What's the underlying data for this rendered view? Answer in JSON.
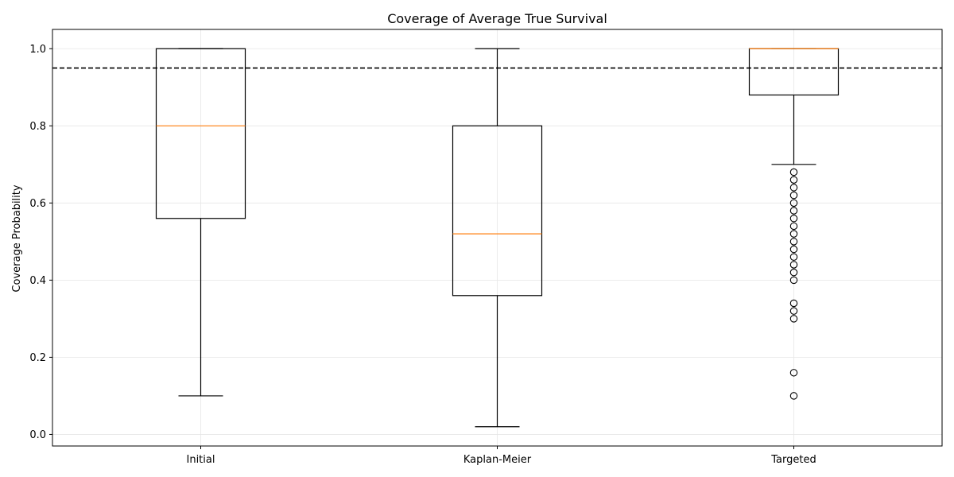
{
  "chart_data": {
    "type": "box",
    "title": "Coverage of Average True Survival",
    "xlabel": "",
    "ylabel": "Coverage Probability",
    "ylim": [
      -0.03,
      1.05
    ],
    "yticks": [
      0.0,
      0.2,
      0.4,
      0.6,
      0.8,
      1.0
    ],
    "ytick_labels": [
      "0.0",
      "0.2",
      "0.4",
      "0.6",
      "0.8",
      "1.0"
    ],
    "grid": true,
    "reference_line": {
      "y": 0.95,
      "style": "dashed",
      "color": "#000000"
    },
    "box_color": "#000000",
    "median_color": "#ff7f0e",
    "categories": [
      "Initial",
      "Kaplan-Meier",
      "Targeted"
    ],
    "boxes": [
      {
        "label": "Initial",
        "whisker_low": 0.1,
        "q1": 0.56,
        "median": 0.8,
        "q3": 1.0,
        "whisker_high": 1.0,
        "outliers": []
      },
      {
        "label": "Kaplan-Meier",
        "whisker_low": 0.02,
        "q1": 0.36,
        "median": 0.52,
        "q3": 0.8,
        "whisker_high": 1.0,
        "outliers": []
      },
      {
        "label": "Targeted",
        "whisker_low": 0.7,
        "q1": 0.88,
        "median": 1.0,
        "q3": 1.0,
        "whisker_high": 1.0,
        "outliers": [
          0.68,
          0.66,
          0.64,
          0.62,
          0.6,
          0.58,
          0.56,
          0.54,
          0.52,
          0.5,
          0.48,
          0.46,
          0.44,
          0.42,
          0.4,
          0.34,
          0.32,
          0.3,
          0.16,
          0.1
        ]
      }
    ]
  }
}
